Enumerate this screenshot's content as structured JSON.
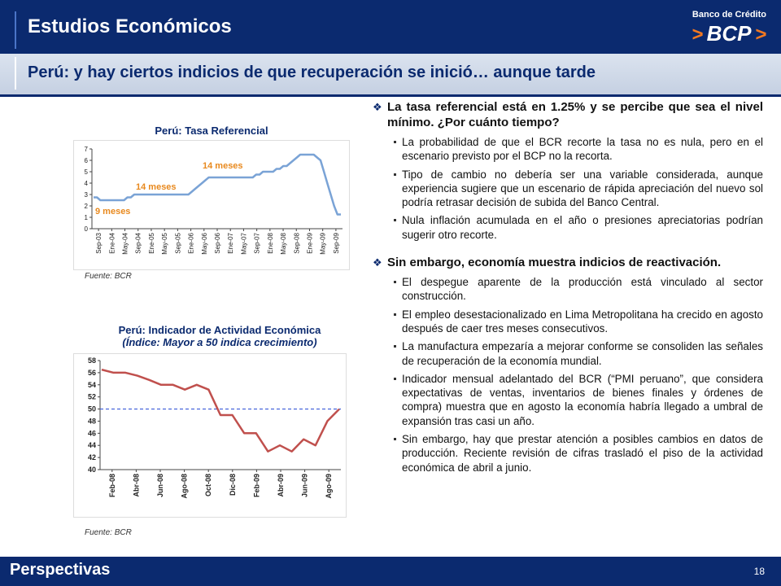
{
  "header": {
    "title": "Estudios Económicos",
    "logo_small": "Banco de Crédito",
    "logo_big": "BCP",
    "logo_chevron": ">"
  },
  "subtitle": "Perú: y hay ciertos indicios de que recuperación se inició… aunque tarde",
  "chart1": {
    "title": "Perú: Tasa Referencial",
    "source": "Fuente: BCR",
    "annotations": [
      "9 meses",
      "14 meses",
      "14 meses"
    ]
  },
  "chart2": {
    "title": "Perú: Indicador de Actividad Económica",
    "subtitle": "(Índice: Mayor a 50 indica crecimiento)",
    "source": "Fuente: BCR"
  },
  "chart_data": [
    {
      "type": "line",
      "title": "Perú: Tasa Referencial",
      "ylim": [
        0,
        7
      ],
      "yticks": [
        "0",
        "1",
        "2",
        "3",
        "4",
        "5",
        "6",
        "7"
      ],
      "xticks": [
        "Sep-03",
        "Ene-04",
        "May-04",
        "Sep-04",
        "Ene-05",
        "May-05",
        "Sep-05",
        "Ene-06",
        "May-06",
        "Sep-06",
        "Ene-07",
        "May-07",
        "Sep-07",
        "Ene-08",
        "May-08",
        "Sep-08",
        "Ene-09",
        "May-09",
        "Sep-09"
      ],
      "series": [
        {
          "values": [
            2.75,
            2.75,
            2.5,
            2.5,
            2.5,
            2.5,
            2.5,
            2.5,
            2.5,
            2.5,
            2.75,
            2.75,
            3,
            3,
            3,
            3,
            3,
            3,
            3,
            3,
            3,
            3,
            3,
            3,
            3,
            3,
            3,
            3,
            3,
            3.25,
            3.5,
            3.75,
            4,
            4.25,
            4.5,
            4.5,
            4.5,
            4.5,
            4.5,
            4.5,
            4.5,
            4.5,
            4.5,
            4.5,
            4.5,
            4.5,
            4.5,
            4.5,
            4.75,
            4.75,
            5,
            5,
            5,
            5,
            5.25,
            5.25,
            5.5,
            5.5,
            5.75,
            6,
            6.25,
            6.5,
            6.5,
            6.5,
            6.5,
            6.5,
            6.25,
            6,
            5,
            4,
            3,
            2,
            1.25,
            1.25
          ],
          "color": "#7aa3d6"
        }
      ],
      "grid": false
    },
    {
      "type": "line",
      "title": "Perú: Indicador de Actividad Económica",
      "ylim": [
        40,
        58
      ],
      "yticks": [
        "40",
        "42",
        "44",
        "46",
        "48",
        "50",
        "52",
        "54",
        "56",
        "58"
      ],
      "xticks": [
        "Feb-08",
        "Abr-08",
        "Jun-08",
        "Ago-08",
        "Oct-08",
        "Dic-08",
        "Feb-09",
        "Abr-09",
        "Jun-09",
        "Ago-09"
      ],
      "series": [
        {
          "values": [
            56.5,
            56,
            56,
            55.5,
            54.8,
            54,
            54,
            53.2,
            54,
            53.2,
            49,
            49,
            46,
            46,
            43,
            44,
            43,
            45,
            44,
            48,
            50
          ],
          "color": "#c0504d"
        }
      ],
      "reference_line": {
        "value": 50,
        "color": "#3a5bd9"
      },
      "grid": false
    }
  ],
  "bullets": [
    {
      "text": "La tasa referencial está en 1.25% y se percibe que sea el nivel mínimo. ¿Por cuánto tiempo?",
      "items": [
        "La probabilidad de que el BCR recorte la tasa no es nula, pero en el escenario previsto por el BCP no la recorta.",
        "Tipo de cambio no debería ser una variable considerada, aunque experiencia sugiere que un escenario de rápida apreciación del nuevo sol podría retrasar decisión de subida del Banco Central.",
        "Nula inflación acumulada en el año o presiones apreciatorias podrían sugerir otro recorte."
      ]
    },
    {
      "text": "Sin embargo, economía muestra indicios de reactivación.",
      "items": [
        "El despegue aparente de la producción está vinculado al sector construcción.",
        "El empleo desestacionalizado en Lima Metropolitana ha crecido en agosto después de caer tres meses consecutivos.",
        "La manufactura empezaría a mejorar conforme se consoliden las señales de recuperación de la economía mundial.",
        "Indicador mensual adelantado del BCR (“PMI peruano”, que considera expectativas de ventas, inventarios de bienes finales y órdenes de compra) muestra que en agosto la economía habría llegado a umbral de expansión tras casi un año.",
        "Sin embargo, hay que prestar atención a posibles cambios en datos de producción. Reciente revisión de cifras trasladó el piso de la actividad económica de abril a junio."
      ]
    }
  ],
  "footer": {
    "label": "Perspectivas",
    "page": "18"
  },
  "colors": {
    "navy": "#0b2a6f",
    "orange": "#e8891e",
    "chart1_line": "#7aa3d6",
    "chart2_line": "#c0504d"
  }
}
